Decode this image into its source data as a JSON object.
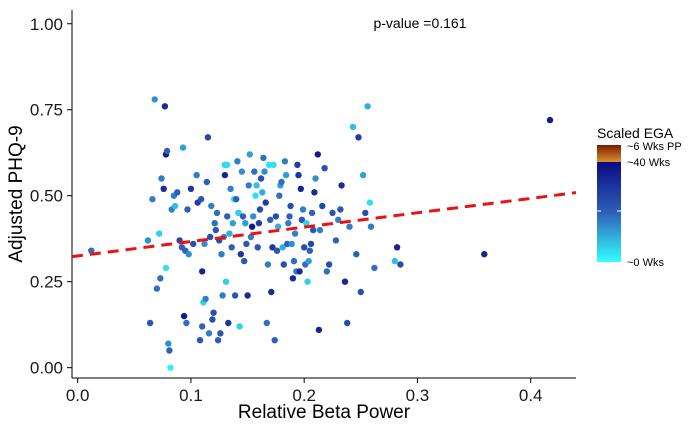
{
  "chart_data": {
    "type": "scatter",
    "title": "",
    "xlabel": "Relative Beta Power",
    "ylabel": "Adjusted PHQ-9",
    "xlim": [
      -0.005,
      0.44
    ],
    "ylim": [
      -0.03,
      1.04
    ],
    "x_ticks": [
      0.0,
      0.1,
      0.2,
      0.3,
      0.4
    ],
    "x_tick_labels": [
      "0.0",
      "0.1",
      "0.2",
      "0.3",
      "0.4"
    ],
    "y_ticks": [
      0.0,
      0.25,
      0.5,
      0.75,
      1.0
    ],
    "y_tick_labels": [
      "0.00",
      "0.25",
      "0.50",
      "0.75",
      "1.00"
    ],
    "grid": false,
    "annotation": "p-value =0.161",
    "trend_line": {
      "intercept": 0.325,
      "slope": 0.418,
      "color": "#ee1111",
      "style": "dashed"
    },
    "legend": {
      "title": "Scaled EGA",
      "labels": [
        "~6 Wks PP",
        "~40 Wks",
        "~0 Wks"
      ],
      "colors": {
        "low": "#33ffff",
        "high": "#0a0a80",
        "top_low": "#d99030",
        "top_high": "#7a1a00"
      },
      "placement": "right"
    },
    "points": [
      [
        0.012,
        0.34,
        0.45
      ],
      [
        0.062,
        0.37,
        0.35
      ],
      [
        0.064,
        0.13,
        0.55
      ],
      [
        0.066,
        0.49,
        0.4
      ],
      [
        0.068,
        0.78,
        0.35
      ],
      [
        0.07,
        0.23,
        0.45
      ],
      [
        0.072,
        0.39,
        0.15
      ],
      [
        0.073,
        0.26,
        0.45
      ],
      [
        0.074,
        0.55,
        0.4
      ],
      [
        0.076,
        0.52,
        0.8
      ],
      [
        0.077,
        0.76,
        0.8
      ],
      [
        0.078,
        0.29,
        0.1
      ],
      [
        0.078,
        0.62,
        0.9
      ],
      [
        0.079,
        0.63,
        0.5
      ],
      [
        0.08,
        0.07,
        0.35
      ],
      [
        0.081,
        0.05,
        0.5
      ],
      [
        0.082,
        0.0,
        0.05
      ],
      [
        0.083,
        0.46,
        0.4
      ],
      [
        0.085,
        0.5,
        0.4
      ],
      [
        0.086,
        0.47,
        0.2
      ],
      [
        0.088,
        0.51,
        0.5
      ],
      [
        0.09,
        0.37,
        0.65
      ],
      [
        0.092,
        0.35,
        0.5
      ],
      [
        0.093,
        0.64,
        0.3
      ],
      [
        0.094,
        0.15,
        0.9
      ],
      [
        0.095,
        0.34,
        0.5
      ],
      [
        0.096,
        0.13,
        0.45
      ],
      [
        0.097,
        0.46,
        0.5
      ],
      [
        0.098,
        0.33,
        0.35
      ],
      [
        0.1,
        0.52,
        0.75
      ],
      [
        0.102,
        0.36,
        0.6
      ],
      [
        0.105,
        0.56,
        0.4
      ],
      [
        0.106,
        0.48,
        0.7
      ],
      [
        0.108,
        0.08,
        0.55
      ],
      [
        0.109,
        0.49,
        0.55
      ],
      [
        0.11,
        0.12,
        0.5
      ],
      [
        0.11,
        0.28,
        0.85
      ],
      [
        0.111,
        0.19,
        0.15
      ],
      [
        0.112,
        0.36,
        0.35
      ],
      [
        0.113,
        0.2,
        0.4
      ],
      [
        0.114,
        0.54,
        0.5
      ],
      [
        0.115,
        0.67,
        0.65
      ],
      [
        0.116,
        0.1,
        0.4
      ],
      [
        0.117,
        0.38,
        0.6
      ],
      [
        0.118,
        0.47,
        0.4
      ],
      [
        0.119,
        0.14,
        0.6
      ],
      [
        0.12,
        0.16,
        0.6
      ],
      [
        0.121,
        0.42,
        0.45
      ],
      [
        0.122,
        0.4,
        0.55
      ],
      [
        0.123,
        0.45,
        0.45
      ],
      [
        0.124,
        0.08,
        0.5
      ],
      [
        0.125,
        0.37,
        0.6
      ],
      [
        0.126,
        0.1,
        0.55
      ],
      [
        0.127,
        0.33,
        0.4
      ],
      [
        0.128,
        0.21,
        0.4
      ],
      [
        0.129,
        0.38,
        0.35
      ],
      [
        0.13,
        0.59,
        0.15
      ],
      [
        0.13,
        0.56,
        0.85
      ],
      [
        0.131,
        0.25,
        0.15
      ],
      [
        0.132,
        0.44,
        0.5
      ],
      [
        0.132,
        0.59,
        0.1
      ],
      [
        0.133,
        0.13,
        0.75
      ],
      [
        0.134,
        0.39,
        0.25
      ],
      [
        0.135,
        0.52,
        0.4
      ],
      [
        0.136,
        0.35,
        0.5
      ],
      [
        0.137,
        0.42,
        0.3
      ],
      [
        0.138,
        0.49,
        0.1
      ],
      [
        0.139,
        0.21,
        0.55
      ],
      [
        0.14,
        0.49,
        0.5
      ],
      [
        0.141,
        0.6,
        0.4
      ],
      [
        0.142,
        0.45,
        0.85
      ],
      [
        0.142,
        0.45,
        0.15
      ],
      [
        0.143,
        0.12,
        0.15
      ],
      [
        0.144,
        0.33,
        0.75
      ],
      [
        0.145,
        0.57,
        0.35
      ],
      [
        0.146,
        0.44,
        0.5
      ],
      [
        0.147,
        0.31,
        0.55
      ],
      [
        0.148,
        0.42,
        0.3
      ],
      [
        0.149,
        0.36,
        0.55
      ],
      [
        0.15,
        0.21,
        0.8
      ],
      [
        0.151,
        0.53,
        0.4
      ],
      [
        0.152,
        0.62,
        0.3
      ],
      [
        0.153,
        0.38,
        0.4
      ],
      [
        0.154,
        0.41,
        0.9
      ],
      [
        0.155,
        0.44,
        0.35
      ],
      [
        0.156,
        0.57,
        0.45
      ],
      [
        0.157,
        0.5,
        0.1
      ],
      [
        0.158,
        0.53,
        0.2
      ],
      [
        0.159,
        0.35,
        0.55
      ],
      [
        0.16,
        0.42,
        0.7
      ],
      [
        0.161,
        0.46,
        0.6
      ],
      [
        0.162,
        0.55,
        0.6
      ],
      [
        0.163,
        0.51,
        0.25
      ],
      [
        0.164,
        0.61,
        0.45
      ],
      [
        0.165,
        0.57,
        0.35
      ],
      [
        0.166,
        0.48,
        0.7
      ],
      [
        0.167,
        0.13,
        0.45
      ],
      [
        0.168,
        0.3,
        0.4
      ],
      [
        0.169,
        0.59,
        0.1
      ],
      [
        0.17,
        0.43,
        0.5
      ],
      [
        0.171,
        0.22,
        0.8
      ],
      [
        0.172,
        0.35,
        0.75
      ],
      [
        0.173,
        0.59,
        0.1
      ],
      [
        0.174,
        0.08,
        0.5
      ],
      [
        0.175,
        0.44,
        0.6
      ],
      [
        0.176,
        0.34,
        0.55
      ],
      [
        0.177,
        0.41,
        0.25
      ],
      [
        0.178,
        0.5,
        0.45
      ],
      [
        0.179,
        0.53,
        0.3
      ],
      [
        0.18,
        0.54,
        0.45
      ],
      [
        0.181,
        0.35,
        0.25
      ],
      [
        0.182,
        0.3,
        0.6
      ],
      [
        0.183,
        0.6,
        0.4
      ],
      [
        0.184,
        0.56,
        0.3
      ],
      [
        0.185,
        0.36,
        0.5
      ],
      [
        0.186,
        0.42,
        0.4
      ],
      [
        0.187,
        0.44,
        0.5
      ],
      [
        0.188,
        0.47,
        0.6
      ],
      [
        0.189,
        0.36,
        0.35
      ],
      [
        0.19,
        0.26,
        0.8
      ],
      [
        0.191,
        0.31,
        0.45
      ],
      [
        0.192,
        0.39,
        0.4
      ],
      [
        0.193,
        0.28,
        0.4
      ],
      [
        0.194,
        0.59,
        0.7
      ],
      [
        0.195,
        0.56,
        0.75
      ],
      [
        0.196,
        0.28,
        0.8
      ],
      [
        0.197,
        0.52,
        0.85
      ],
      [
        0.198,
        0.43,
        0.55
      ],
      [
        0.199,
        0.46,
        0.4
      ],
      [
        0.2,
        0.35,
        0.6
      ],
      [
        0.201,
        0.3,
        0.45
      ],
      [
        0.202,
        0.42,
        0.15
      ],
      [
        0.203,
        0.25,
        0.15
      ],
      [
        0.204,
        0.31,
        0.3
      ],
      [
        0.205,
        0.34,
        0.5
      ],
      [
        0.206,
        0.36,
        0.65
      ],
      [
        0.207,
        0.45,
        0.5
      ],
      [
        0.208,
        0.4,
        0.55
      ],
      [
        0.209,
        0.51,
        0.8
      ],
      [
        0.21,
        0.55,
        0.35
      ],
      [
        0.212,
        0.62,
        0.9
      ],
      [
        0.213,
        0.11,
        0.85
      ],
      [
        0.214,
        0.4,
        0.4
      ],
      [
        0.216,
        0.47,
        0.65
      ],
      [
        0.218,
        0.58,
        0.6
      ],
      [
        0.22,
        0.28,
        0.45
      ],
      [
        0.222,
        0.3,
        0.6
      ],
      [
        0.225,
        0.45,
        0.55
      ],
      [
        0.228,
        0.37,
        0.5
      ],
      [
        0.23,
        0.43,
        0.4
      ],
      [
        0.232,
        0.46,
        0.55
      ],
      [
        0.233,
        0.53,
        0.8
      ],
      [
        0.236,
        0.25,
        0.85
      ],
      [
        0.238,
        0.13,
        0.6
      ],
      [
        0.24,
        0.41,
        0.4
      ],
      [
        0.243,
        0.7,
        0.2
      ],
      [
        0.246,
        0.33,
        0.5
      ],
      [
        0.248,
        0.67,
        0.7
      ],
      [
        0.25,
        0.22,
        0.6
      ],
      [
        0.252,
        0.56,
        0.3
      ],
      [
        0.254,
        0.45,
        0.6
      ],
      [
        0.256,
        0.76,
        0.25
      ],
      [
        0.258,
        0.48,
        0.1
      ],
      [
        0.259,
        0.41,
        0.4
      ],
      [
        0.262,
        0.29,
        0.45
      ],
      [
        0.28,
        0.31,
        0.2
      ],
      [
        0.282,
        0.35,
        0.85
      ],
      [
        0.285,
        0.3,
        0.6
      ],
      [
        0.359,
        0.33,
        0.85
      ],
      [
        0.417,
        0.72,
        0.9
      ]
    ]
  }
}
